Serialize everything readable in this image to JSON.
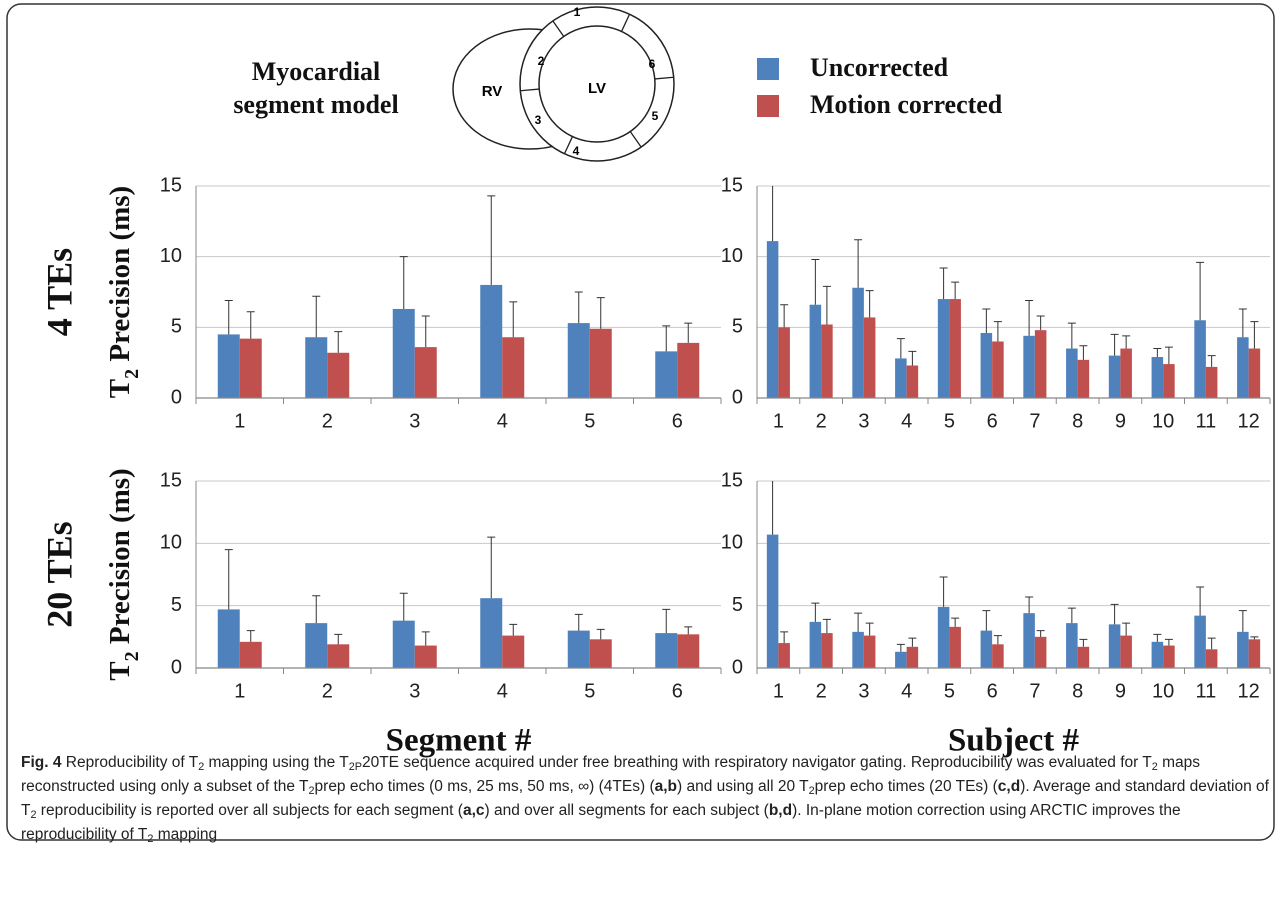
{
  "chart_data": [
    {
      "type": "bar",
      "row_label": "4 TEs",
      "y_label": [
        {
          "text": "T"
        },
        {
          "text": "2",
          "sub": true
        },
        {
          "text": " Precision (ms)"
        }
      ],
      "categories": [
        "1",
        "2",
        "3",
        "4",
        "5",
        "6"
      ],
      "series": [
        {
          "name": "Uncorrected",
          "color": "#4f81bd",
          "values": [
            4.5,
            4.3,
            6.3,
            8.0,
            5.3,
            3.3
          ],
          "errors": [
            2.4,
            2.9,
            3.7,
            6.3,
            2.2,
            1.8
          ]
        },
        {
          "name": "Motion corrected",
          "color": "#c0504d",
          "values": [
            4.2,
            3.2,
            3.6,
            4.3,
            4.9,
            3.9
          ],
          "errors": [
            1.9,
            1.5,
            2.2,
            2.5,
            2.2,
            1.4
          ]
        }
      ],
      "ylim": [
        0,
        15
      ],
      "yticks": [
        0,
        5,
        10,
        15
      ],
      "grid": true
    },
    {
      "type": "bar",
      "categories": [
        "1",
        "2",
        "3",
        "4",
        "5",
        "6",
        "7",
        "8",
        "9",
        "10",
        "11",
        "12"
      ],
      "series": [
        {
          "color": "#4f81bd",
          "values": [
            11.1,
            6.6,
            7.8,
            2.8,
            7.0,
            4.6,
            4.4,
            3.5,
            3.0,
            2.9,
            5.5,
            4.3
          ],
          "errors": [
            4.5,
            3.2,
            3.4,
            1.4,
            2.2,
            1.7,
            2.5,
            1.8,
            1.5,
            0.6,
            4.1,
            2.0
          ]
        },
        {
          "color": "#c0504d",
          "values": [
            5.0,
            5.2,
            5.7,
            2.3,
            7.0,
            4.0,
            4.8,
            2.7,
            3.5,
            2.4,
            2.2,
            3.5
          ],
          "errors": [
            1.6,
            2.7,
            1.9,
            1.0,
            1.2,
            1.4,
            1.0,
            1.0,
            0.9,
            1.2,
            0.8,
            1.9
          ]
        }
      ],
      "ylim": [
        0,
        15
      ],
      "yticks": [
        0,
        5,
        10,
        15
      ],
      "grid": true
    },
    {
      "type": "bar",
      "row_label": "20 TEs",
      "y_label": [
        {
          "text": "T"
        },
        {
          "text": "2",
          "sub": true
        },
        {
          "text": " Precision (ms)"
        }
      ],
      "x_label": "Segment #",
      "categories": [
        "1",
        "2",
        "3",
        "4",
        "5",
        "6"
      ],
      "series": [
        {
          "color": "#4f81bd",
          "values": [
            4.7,
            3.6,
            3.8,
            5.6,
            3.0,
            2.8
          ],
          "errors": [
            4.8,
            2.2,
            2.2,
            4.9,
            1.3,
            1.9
          ]
        },
        {
          "color": "#c0504d",
          "values": [
            2.1,
            1.9,
            1.8,
            2.6,
            2.3,
            2.7
          ],
          "errors": [
            0.9,
            0.8,
            1.1,
            0.9,
            0.8,
            0.6
          ]
        }
      ],
      "ylim": [
        0,
        15
      ],
      "yticks": [
        0,
        5,
        10,
        15
      ],
      "grid": true
    },
    {
      "type": "bar",
      "x_label": "Subject #",
      "categories": [
        "1",
        "2",
        "3",
        "4",
        "5",
        "6",
        "7",
        "8",
        "9",
        "10",
        "11",
        "12"
      ],
      "series": [
        {
          "color": "#4f81bd",
          "values": [
            10.7,
            3.7,
            2.9,
            1.3,
            4.9,
            3.0,
            4.4,
            3.6,
            3.5,
            2.1,
            4.2,
            2.9
          ],
          "errors": [
            5.0,
            1.5,
            1.5,
            0.6,
            2.4,
            1.6,
            1.3,
            1.2,
            1.6,
            0.6,
            2.3,
            1.7
          ]
        },
        {
          "color": "#c0504d",
          "values": [
            2.0,
            2.8,
            2.6,
            1.7,
            3.3,
            1.9,
            2.5,
            1.7,
            2.6,
            1.8,
            1.5,
            2.3
          ],
          "errors": [
            0.9,
            1.1,
            1.0,
            0.7,
            0.7,
            0.7,
            0.5,
            0.6,
            1.0,
            0.5,
            0.9,
            0.2
          ]
        }
      ],
      "ylim": [
        0,
        15
      ],
      "yticks": [
        0,
        5,
        10,
        15
      ],
      "grid": true
    }
  ],
  "diagram": {
    "title_lines": [
      "Myocardial",
      "segment model"
    ],
    "rv": "RV",
    "lv": "LV",
    "segments": [
      "1",
      "2",
      "3",
      "4",
      "5",
      "6"
    ]
  },
  "caption": [
    {
      "text": "Fig. 4",
      "bold": true
    },
    {
      "text": " Reproducibility of T"
    },
    {
      "text": "2",
      "sub": true
    },
    {
      "text": " mapping using the T"
    },
    {
      "text": "2P",
      "sub": true
    },
    {
      "text": "20TE sequence acquired under free breathing with respiratory navigator gating. Reproducibility was evaluated for T"
    },
    {
      "text": "2",
      "sub": true
    },
    {
      "text": " maps reconstructed using only a subset of the T"
    },
    {
      "text": "2",
      "sub": true
    },
    {
      "text": "prep echo times (0 ms, 25 ms, 50 ms, ∞) (4TEs) ("
    },
    {
      "text": "a,b",
      "bold": true
    },
    {
      "text": ") and using all 20 T"
    },
    {
      "text": "2",
      "sub": true
    },
    {
      "text": "prep echo times (20 TEs) ("
    },
    {
      "text": "c,d",
      "bold": true
    },
    {
      "text": "). Average and standard deviation of T"
    },
    {
      "text": "2",
      "sub": true
    },
    {
      "text": " reproducibility is reported over all subjects for each segment ("
    },
    {
      "text": "a,c",
      "bold": true
    },
    {
      "text": ") and over all segments for each subject ("
    },
    {
      "text": "b,d",
      "bold": true
    },
    {
      "text": "). In-plane motion correction using ARCTIC improves the reproducibility of T"
    },
    {
      "text": "2",
      "sub": true
    },
    {
      "text": " mapping"
    }
  ]
}
